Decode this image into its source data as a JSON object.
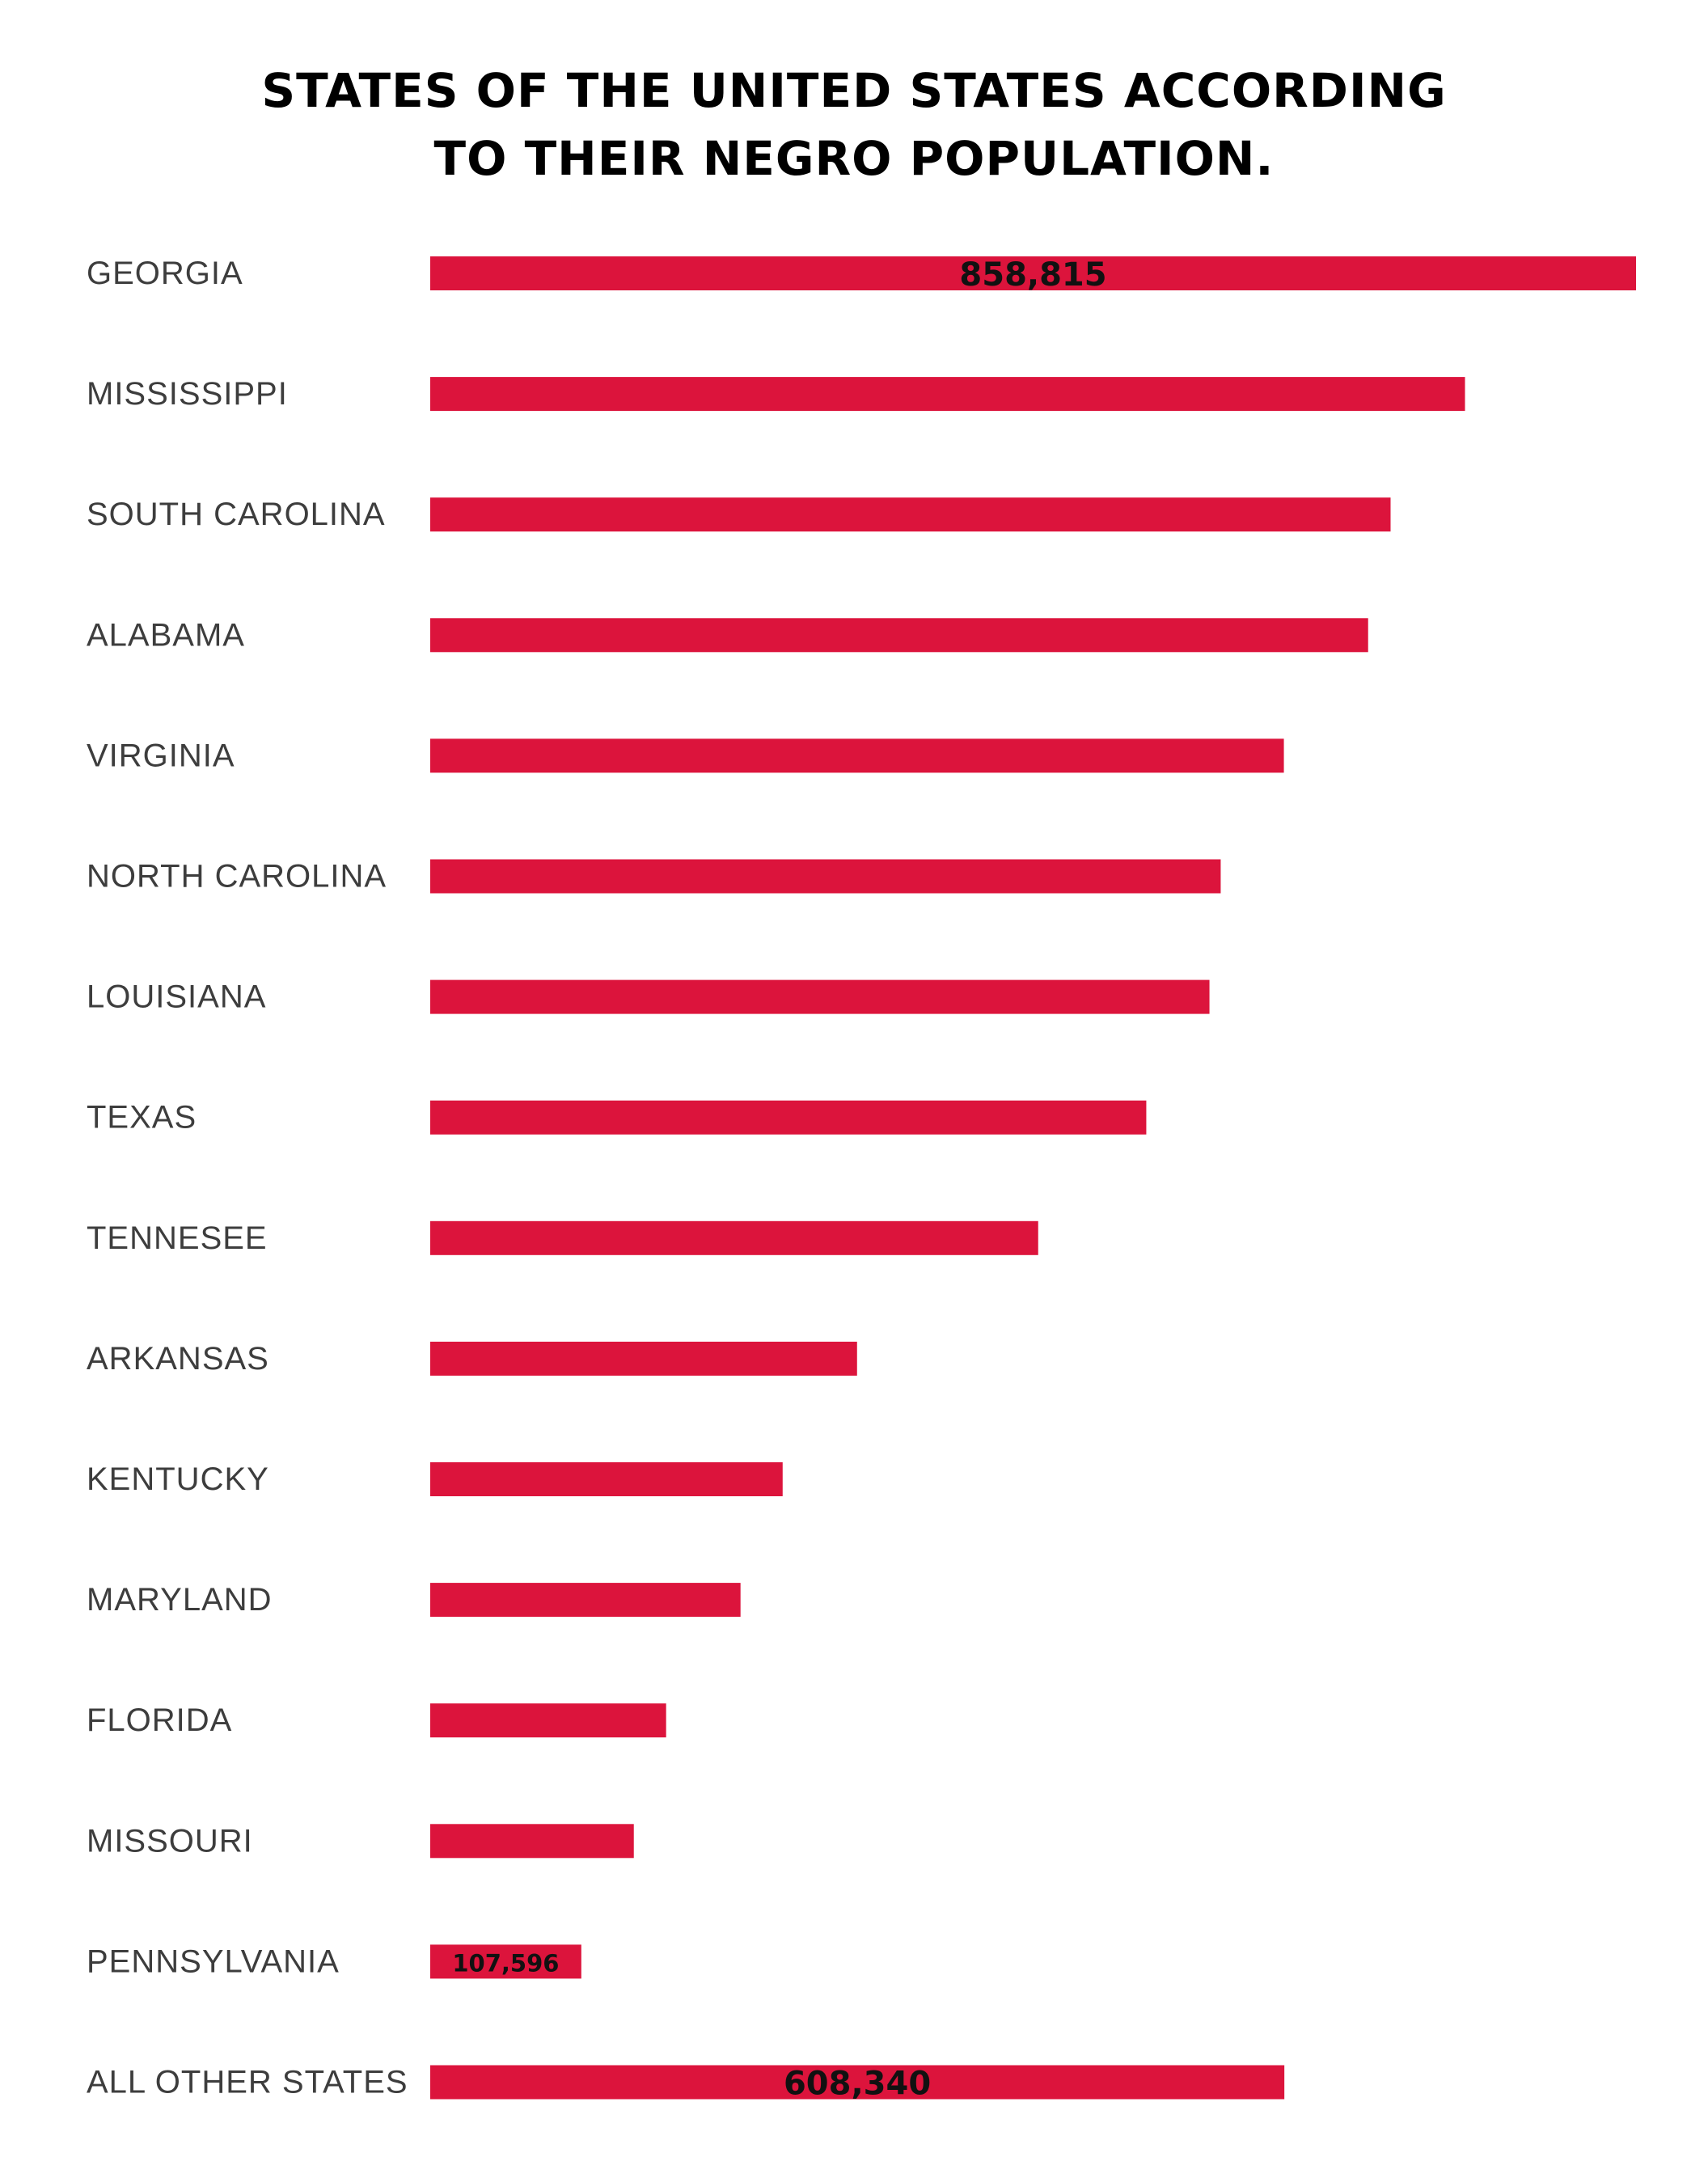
{
  "title": {
    "line1": "STATES OF THE UNITED STATES ACCORDING",
    "line2": "TO THEIR NEGRO POPULATION."
  },
  "colors": {
    "bar": "#dc143c",
    "label": "#3d3d3d",
    "value_text": "#111111",
    "background": "#ffffff"
  },
  "chart_data": {
    "type": "bar",
    "orientation": "horizontal",
    "title": "STATES OF THE UNITED STATES ACCORDING TO THEIR NEGRO POPULATION.",
    "xlabel": "",
    "ylabel": "",
    "grid": false,
    "legend": "none",
    "xlim": [
      0,
      858815
    ],
    "categories": [
      "GEORGIA",
      "MISSISSIPPI",
      "SOUTH CAROLINA",
      "ALABAMA",
      "VIRGINIA",
      "NORTH CAROLINA",
      "LOUISIANA",
      "TEXAS",
      "TENNESEE",
      "ARKANSAS",
      "KENTUCKY",
      "MARYLAND",
      "FLORIDA",
      "MISSOURI",
      "PENNSYLVANIA",
      "ALL OTHER STATES"
    ],
    "values": [
      858815,
      737000,
      684000,
      668000,
      608000,
      563000,
      555000,
      510000,
      433000,
      304000,
      251000,
      221000,
      168000,
      145000,
      107596,
      608340
    ],
    "data_labels": {
      "GEORGIA": "858,815",
      "PENNSYLVANIA": "107,596",
      "ALL OTHER STATES": "608,340"
    }
  }
}
